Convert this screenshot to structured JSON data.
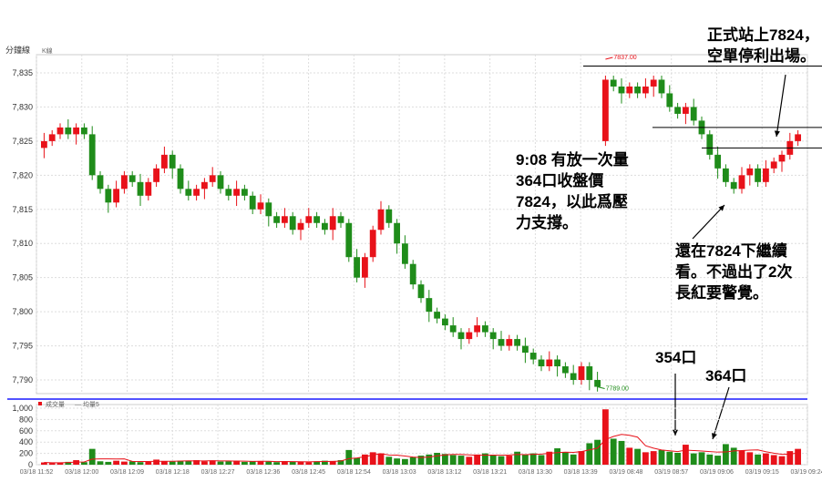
{
  "header": {
    "title": "分鐘線",
    "subtitle": "K線"
  },
  "volume_panel": {
    "legend_volume": "成交量",
    "legend_avg": "均量5"
  },
  "price_labels": {
    "high": "7837.00",
    "low": "7789.00"
  },
  "annotations": {
    "top_right": "正式站上7824，\n空單停利出場。",
    "middle": "9:08 有放一次量\n364口收盤價\n7824，以此爲壓\n力支撐。",
    "lower": "還在7824下繼續\n看。不過出了2次\n長紅要警覺。",
    "vol1": "354口",
    "vol2": "364口"
  },
  "colors": {
    "up": "#e8121a",
    "down": "#1f8c1a",
    "divider": "#1a1aff",
    "grid": "#dddddd",
    "avg_line": "#e8121a"
  },
  "chart_data": [
    {
      "type": "candlestick",
      "title": "分鐘線",
      "ylim": [
        7788,
        7837
      ],
      "yticks": [
        "7,790",
        "7,795",
        "7,800",
        "7,805",
        "7,810",
        "7,815",
        "7,820",
        "7,825",
        "7,830",
        "7,835"
      ],
      "ytick_values": [
        7790,
        7795,
        7800,
        7805,
        7810,
        7815,
        7820,
        7825,
        7830,
        7835
      ],
      "xticks": [
        "03/18 11:52",
        "03/18 12:00",
        "03/18 12:09",
        "03/18 12:18",
        "03/18 12:27",
        "03/18 12:36",
        "03/18 12:45",
        "03/18 12:54",
        "03/18 13:03",
        "03/18 13:12",
        "03/18 13:21",
        "03/18 13:30",
        "03/18 13:39",
        "03/19 08:48",
        "03/19 08:57",
        "03/19 09:06",
        "03/19 09:15",
        "03/19 09:24"
      ],
      "close_path": [
        7825,
        7826,
        7827,
        7826,
        7827,
        7826,
        7820,
        7818,
        7816,
        7818,
        7820,
        7819,
        7817,
        7819,
        7821,
        7823,
        7821,
        7818,
        7817,
        7818,
        7819,
        7820,
        7818,
        7817,
        7818,
        7817,
        7815,
        7816,
        7814,
        7813,
        7814,
        7812,
        7813,
        7814,
        7813,
        7812,
        7814,
        7813,
        7808,
        7805,
        7808,
        7812,
        7815,
        7813,
        7810,
        7807,
        7804,
        7802,
        7800,
        7799,
        7798,
        7797,
        7796,
        7797,
        7798,
        7797,
        7796,
        7795,
        7796,
        7795,
        7794,
        7793,
        7792,
        7793,
        7792,
        7791,
        7790,
        7792,
        7790,
        7789,
        7834,
        7833,
        7832,
        7833,
        7832,
        7833,
        7834,
        7832,
        7830,
        7829,
        7830,
        7828,
        7826,
        7823,
        7821,
        7819,
        7818,
        7820,
        7821,
        7819,
        7821,
        7822,
        7823,
        7825,
        7826
      ],
      "price_high": 7837,
      "price_low": 7789
    },
    {
      "type": "bar",
      "title": "成交量",
      "ylim": [
        0,
        1000
      ],
      "yticks": [
        "1,000",
        "800",
        "600",
        "400",
        "200",
        "0"
      ],
      "ytick_values": [
        1000,
        800,
        600,
        400,
        200,
        0
      ],
      "values": [
        40,
        30,
        35,
        50,
        80,
        45,
        280,
        60,
        50,
        70,
        55,
        60,
        45,
        50,
        90,
        60,
        55,
        70,
        65,
        80,
        60,
        75,
        55,
        60,
        70,
        50,
        60,
        65,
        55,
        45,
        60,
        50,
        55,
        45,
        60,
        70,
        65,
        80,
        260,
        120,
        180,
        220,
        200,
        140,
        110,
        100,
        130,
        160,
        180,
        210,
        190,
        170,
        160,
        140,
        180,
        200,
        170,
        150,
        160,
        230,
        180,
        200,
        170,
        230,
        290,
        220,
        180,
        240,
        380,
        440,
        980,
        460,
        420,
        300,
        280,
        220,
        240,
        260,
        230,
        210,
        354,
        200,
        220,
        180,
        160,
        364,
        300,
        250,
        220,
        180,
        200,
        170,
        150,
        240,
        280
      ]
    }
  ]
}
